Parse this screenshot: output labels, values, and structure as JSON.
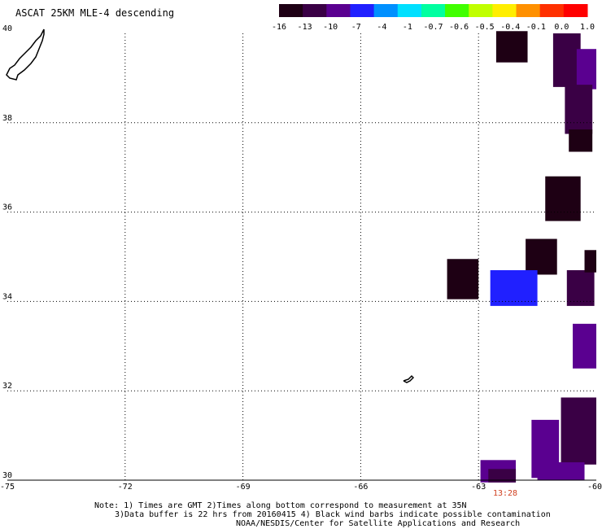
{
  "title": "ASCAT 25KM MLE-4 descending",
  "colorbar": {
    "ticks": [
      "-16",
      "-13",
      "-10",
      "-7",
      "-4",
      "-1",
      "-0.7",
      "-0.6",
      "-0.5",
      "-0.4",
      "-0.1",
      "0.0",
      "1.0"
    ],
    "colors": [
      "#1e0014",
      "#3a0045",
      "#5a0090",
      "#2020ff",
      "#0090ff",
      "#00e0ff",
      "#00ffa0",
      "#40ff00",
      "#c0ff00",
      "#ffee00",
      "#ff9000",
      "#ff3000",
      "#ff0000"
    ]
  },
  "map": {
    "lon_ticks": [
      "-75",
      "-72",
      "-69",
      "-66",
      "-63",
      "-60"
    ],
    "lat_ticks": [
      "40",
      "38",
      "36",
      "34",
      "32",
      "30"
    ],
    "time_label": "13:28"
  },
  "cells": [
    {
      "lon": -62.15,
      "lat": 39.7,
      "w": 0.8,
      "h": 0.7,
      "value": -14
    },
    {
      "lon": -60.75,
      "lat": 39.4,
      "w": 0.7,
      "h": 1.2,
      "value": -12
    },
    {
      "lon": -60.25,
      "lat": 39.2,
      "w": 0.5,
      "h": 0.9,
      "value": -9
    },
    {
      "lon": -60.45,
      "lat": 38.3,
      "w": 0.7,
      "h": 1.1,
      "value": -12
    },
    {
      "lon": -60.4,
      "lat": 37.6,
      "w": 0.6,
      "h": 0.5,
      "value": -15
    },
    {
      "lon": -60.85,
      "lat": 36.3,
      "w": 0.9,
      "h": 1.0,
      "value": -14
    },
    {
      "lon": -61.4,
      "lat": 35.0,
      "w": 0.8,
      "h": 0.8,
      "value": -14
    },
    {
      "lon": -63.4,
      "lat": 34.5,
      "w": 0.8,
      "h": 0.9,
      "value": -14
    },
    {
      "lon": -62.1,
      "lat": 34.3,
      "w": 1.2,
      "h": 0.8,
      "value": -7
    },
    {
      "lon": -60.4,
      "lat": 34.3,
      "w": 0.7,
      "h": 0.8,
      "value": -12
    },
    {
      "lon": -60.15,
      "lat": 34.9,
      "w": 0.3,
      "h": 0.5,
      "value": -15
    },
    {
      "lon": -60.3,
      "lat": 33.0,
      "w": 0.6,
      "h": 1.0,
      "value": -10
    },
    {
      "lon": -60.45,
      "lat": 31.1,
      "w": 0.9,
      "h": 1.5,
      "value": -11
    },
    {
      "lon": -61.3,
      "lat": 30.7,
      "w": 0.7,
      "h": 1.3,
      "value": -8
    },
    {
      "lon": -60.9,
      "lat": 30.2,
      "w": 1.2,
      "h": 0.4,
      "value": -8
    },
    {
      "lon": -62.5,
      "lat": 30.2,
      "w": 0.9,
      "h": 0.5,
      "value": -8
    },
    {
      "lon": -62.4,
      "lat": 30.1,
      "w": 0.7,
      "h": 0.3,
      "value": -11
    }
  ],
  "footer": {
    "line1": "Note: 1) Times are GMT 2)Times along bottom correspond to measurement at 35N",
    "line2": "3)Data buffer is 22 hrs from 20160415 4) Black wind barbs indicate possible contamination",
    "line3": "NOAA/NESDIS/Center for Satellite Applications and Research"
  }
}
